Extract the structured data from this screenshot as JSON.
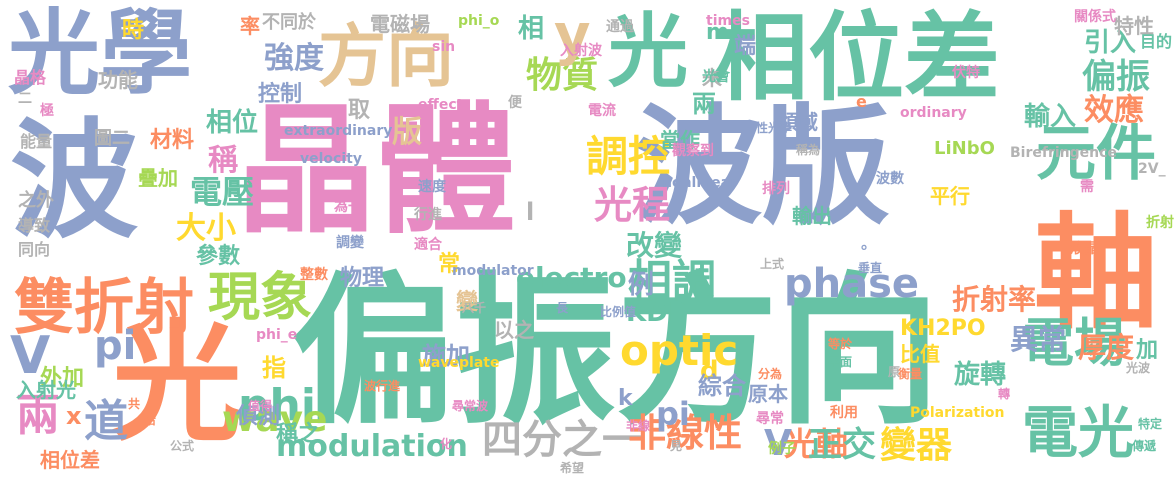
{
  "palette": {
    "green": "#66c2a5",
    "orange": "#fc8d62",
    "blue": "#8da0cb",
    "pink": "#e78ac3",
    "lime": "#a6d854",
    "yellow": "#ffd92f",
    "tan": "#e5c494",
    "gray": "#b3b3b3"
  },
  "words": [
    {
      "text": "光學",
      "color": "blue"
    },
    {
      "text": "方向",
      "color": "tan"
    },
    {
      "text": "光",
      "color": "green"
    },
    {
      "text": "相位差",
      "color": "green"
    },
    {
      "text": "波",
      "color": "blue"
    },
    {
      "text": "晶體",
      "color": "pink"
    },
    {
      "text": "波版",
      "color": "blue"
    },
    {
      "text": "軸",
      "color": "orange"
    },
    {
      "text": "偏振方向",
      "color": "green"
    },
    {
      "text": "光",
      "color": "orange"
    },
    {
      "text": "雙折射",
      "color": "orange"
    },
    {
      "text": "現象",
      "color": "lime"
    },
    {
      "text": "元件",
      "color": "green"
    },
    {
      "text": "調控",
      "color": "yellow"
    },
    {
      "text": "光程",
      "color": "pink"
    },
    {
      "text": "物質",
      "color": "lime"
    },
    {
      "text": "相調",
      "color": "green"
    },
    {
      "text": "phase",
      "color": "blue"
    },
    {
      "text": "optic",
      "color": "yellow"
    },
    {
      "text": "電場",
      "color": "green"
    },
    {
      "text": "電光",
      "color": "green"
    },
    {
      "text": "兩",
      "color": "pink"
    },
    {
      "text": "道",
      "color": "blue"
    },
    {
      "text": "pi",
      "color": "blue"
    },
    {
      "text": "V",
      "color": "blue"
    },
    {
      "text": "phi",
      "color": "green"
    },
    {
      "text": "wave",
      "color": "lime"
    },
    {
      "text": "modulation",
      "color": "green"
    },
    {
      "text": "四分之一",
      "color": "gray"
    },
    {
      "text": "非線性",
      "color": "orange"
    },
    {
      "text": "光軸",
      "color": "orange"
    },
    {
      "text": "變器",
      "color": "yellow"
    },
    {
      "text": "正交",
      "color": "green"
    },
    {
      "text": "V",
      "color": "blue"
    },
    {
      "text": "y",
      "color": "tan"
    },
    {
      "text": "偏振",
      "color": "green"
    },
    {
      "text": "引入",
      "color": "green"
    },
    {
      "text": "效應",
      "color": "orange"
    },
    {
      "text": "輸入",
      "color": "green"
    },
    {
      "text": "折射率",
      "color": "orange"
    },
    {
      "text": "異常",
      "color": "blue"
    },
    {
      "text": "厚度",
      "color": "orange"
    },
    {
      "text": "電壓",
      "color": "green"
    },
    {
      "text": "強度",
      "color": "blue"
    },
    {
      "text": "大小",
      "color": "yellow"
    },
    {
      "text": "稱",
      "color": "pink"
    },
    {
      "text": "版",
      "color": "tan"
    },
    {
      "text": "相位",
      "color": "green"
    },
    {
      "text": "改變",
      "color": "green"
    },
    {
      "text": "electro",
      "color": "green"
    },
    {
      "text": "KDP",
      "color": "green"
    },
    {
      "text": "pi",
      "color": "blue"
    },
    {
      "text": "例",
      "color": "blue"
    },
    {
      "text": "d",
      "color": "yellow"
    },
    {
      "text": "KH2PO",
      "color": "yellow"
    },
    {
      "text": "旋轉",
      "color": "green"
    },
    {
      "text": "綜合",
      "color": "blue"
    },
    {
      "text": "施加",
      "color": "blue"
    },
    {
      "text": "指",
      "color": "yellow"
    },
    {
      "text": "物理",
      "color": "blue"
    },
    {
      "text": "參數",
      "color": "green"
    },
    {
      "text": "偵測",
      "color": "blue"
    },
    {
      "text": "稱之",
      "color": "green"
    },
    {
      "text": "外加",
      "color": "lime"
    },
    {
      "text": "入射光",
      "color": "green"
    },
    {
      "text": "相位差",
      "color": "orange"
    },
    {
      "text": "時",
      "color": "yellow"
    },
    {
      "text": "功能",
      "color": "gray"
    },
    {
      "text": "控制",
      "color": "blue"
    },
    {
      "text": "材料",
      "color": "orange"
    },
    {
      "text": "疊加",
      "color": "lime"
    },
    {
      "text": "圖二",
      "color": "gray"
    },
    {
      "text": "之外",
      "color": "gray"
    },
    {
      "text": "能量",
      "color": "gray"
    },
    {
      "text": "導致",
      "color": "gray"
    },
    {
      "text": "同向",
      "color": "gray"
    },
    {
      "text": "晶格",
      "color": "pink"
    },
    {
      "text": "率",
      "color": "orange"
    },
    {
      "text": "不同於",
      "color": "gray"
    },
    {
      "text": "電磁場",
      "color": "gray"
    },
    {
      "text": "取",
      "color": "gray"
    },
    {
      "text": "未",
      "color": "gray"
    },
    {
      "text": "相",
      "color": "green"
    },
    {
      "text": "m",
      "color": "green"
    },
    {
      "text": "端",
      "color": "blue"
    },
    {
      "text": "兩",
      "color": "green"
    },
    {
      "text": "當作",
      "color": "green"
    },
    {
      "text": "領域",
      "color": "blue"
    },
    {
      "text": "常",
      "color": "yellow"
    },
    {
      "text": "變",
      "color": "tan"
    },
    {
      "text": "以之",
      "color": "gray"
    },
    {
      "text": "原本",
      "color": "blue"
    },
    {
      "text": "比值",
      "color": "yellow"
    },
    {
      "text": "加",
      "color": "green"
    },
    {
      "text": "特性",
      "color": "gray"
    },
    {
      "text": "目的",
      "color": "green"
    },
    {
      "text": "LiNbO",
      "color": "lime"
    },
    {
      "text": "Birefringence",
      "color": "gray"
    },
    {
      "text": "輸出",
      "color": "green"
    },
    {
      "text": "平行",
      "color": "yellow"
    },
    {
      "text": "extraordinary",
      "color": "blue"
    },
    {
      "text": "velocity",
      "color": "blue"
    },
    {
      "text": "nonlinear",
      "color": "blue"
    },
    {
      "text": "effect",
      "color": "pink"
    },
    {
      "text": "ordinary",
      "color": "pink"
    },
    {
      "text": "waveplate",
      "color": "yellow"
    },
    {
      "text": "modulator",
      "color": "blue"
    },
    {
      "text": "Polarization",
      "color": "yellow"
    },
    {
      "text": "times",
      "color": "pink"
    },
    {
      "text": "sin",
      "color": "pink"
    },
    {
      "text": "phi_o",
      "color": "lime"
    },
    {
      "text": "phi_e",
      "color": "pink"
    },
    {
      "text": "2V_",
      "color": "gray"
    },
    {
      "text": "k",
      "color": "blue"
    },
    {
      "text": "l",
      "color": "gray"
    },
    {
      "text": "x",
      "color": "orange"
    },
    {
      "text": "e",
      "color": "orange"
    },
    {
      "text": "通過",
      "color": "gray"
    },
    {
      "text": "入射波",
      "color": "pink"
    },
    {
      "text": "光會",
      "color": "green"
    },
    {
      "text": "伏特",
      "color": "pink"
    },
    {
      "text": "關係式",
      "color": "pink"
    },
    {
      "text": "電流",
      "color": "pink"
    },
    {
      "text": "觀察到",
      "color": "pink"
    },
    {
      "text": "性光學",
      "color": "blue"
    },
    {
      "text": "稱為",
      "color": "gray"
    },
    {
      "text": "排列",
      "color": "pink"
    },
    {
      "text": "波數",
      "color": "blue"
    },
    {
      "text": "需",
      "color": "pink"
    },
    {
      "text": "折射",
      "color": "lime"
    },
    {
      "text": "液晶",
      "color": "orange"
    },
    {
      "text": "垂直",
      "color": "blue"
    },
    {
      "text": "上式",
      "color": "gray"
    },
    {
      "text": "速度",
      "color": "blue"
    },
    {
      "text": "行進",
      "color": "gray"
    },
    {
      "text": "為一",
      "color": "pink"
    },
    {
      "text": "調變",
      "color": "blue"
    },
    {
      "text": "適合",
      "color": "pink"
    },
    {
      "text": "整數",
      "color": "orange"
    },
    {
      "text": "八千",
      "color": "gray"
    },
    {
      "text": "長",
      "color": "blue"
    },
    {
      "text": "比例值",
      "color": "blue"
    },
    {
      "text": "波行進",
      "color": "orange"
    },
    {
      "text": "尋常波",
      "color": "pink"
    },
    {
      "text": "非線",
      "color": "pink"
    },
    {
      "text": "尋常",
      "color": "pink"
    },
    {
      "text": "例子",
      "color": "lime"
    },
    {
      "text": "利用",
      "color": "orange"
    },
    {
      "text": "分為",
      "color": "orange"
    },
    {
      "text": "平面",
      "color": "green"
    },
    {
      "text": "衡量",
      "color": "orange"
    },
    {
      "text": "等於",
      "color": "orange"
    },
    {
      "text": "原",
      "color": "gray"
    },
    {
      "text": "光波",
      "color": "gray"
    },
    {
      "text": "轉",
      "color": "pink"
    },
    {
      "text": "特定",
      "color": "green"
    },
    {
      "text": "傳遞",
      "color": "green"
    },
    {
      "text": "希望",
      "color": "gray"
    },
    {
      "text": "公式",
      "color": "gray"
    },
    {
      "text": "恰",
      "color": "orange"
    },
    {
      "text": "共",
      "color": "orange"
    },
    {
      "text": "值得",
      "color": "pink"
    },
    {
      "text": "化",
      "color": "pink"
    },
    {
      "text": "見",
      "color": "gray"
    },
    {
      "text": "便",
      "color": "gray"
    },
    {
      "text": "二",
      "color": "gray"
    },
    {
      "text": "極",
      "color": "pink"
    },
    {
      "text": "°",
      "color": "blue"
    }
  ]
}
